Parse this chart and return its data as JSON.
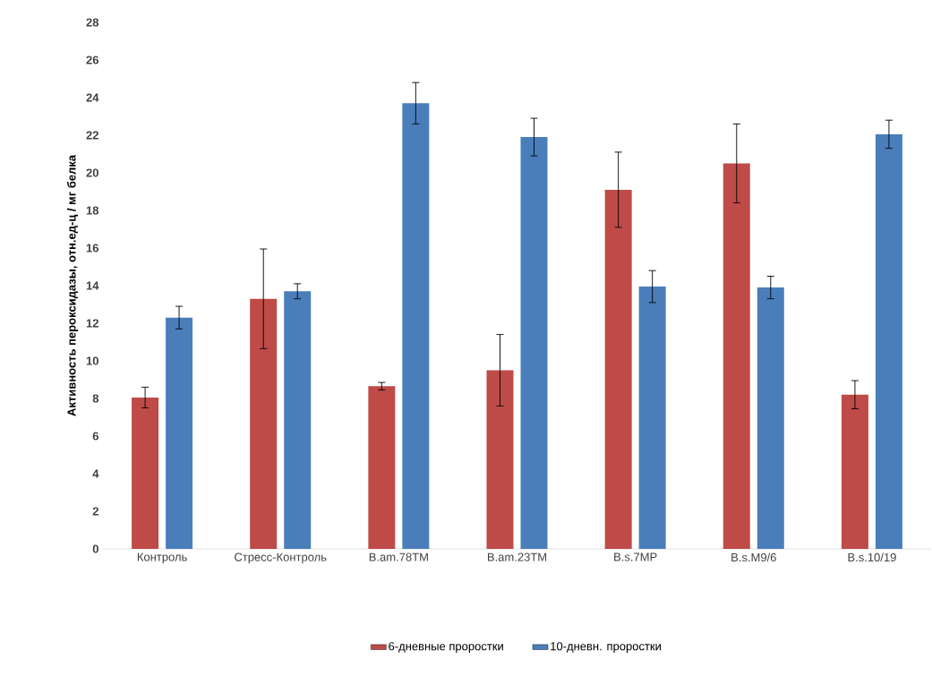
{
  "chart_data": {
    "type": "bar",
    "ylabel": "Активность пероксидазы, отн.ед-ц / мг белка",
    "categories": [
      "Контроль",
      "Стресс-Контроль",
      "B.am.78TM",
      "B.am.23TM",
      "B.s.7MP",
      "B.s.M9/6",
      "B.s.10/19"
    ],
    "series": [
      {
        "name": "6-дневные проростки",
        "color": "#be4b48",
        "values": [
          8.05,
          13.3,
          8.65,
          9.5,
          19.1,
          20.5,
          8.2
        ],
        "errors": [
          0.55,
          2.65,
          0.2,
          1.9,
          2.0,
          2.1,
          0.75
        ]
      },
      {
        "name": "10-дневн. проростки",
        "color": "#4a7ebb",
        "values": [
          12.3,
          13.7,
          23.7,
          21.9,
          13.95,
          13.9,
          22.05
        ],
        "errors": [
          0.6,
          0.4,
          1.1,
          1.0,
          0.85,
          0.6,
          0.75
        ]
      }
    ],
    "ylim": [
      0,
      28
    ],
    "yticks": [
      0,
      2,
      4,
      6,
      8,
      10,
      12,
      14,
      16,
      18,
      20,
      22,
      24,
      26,
      28
    ],
    "legend": "bottom"
  }
}
